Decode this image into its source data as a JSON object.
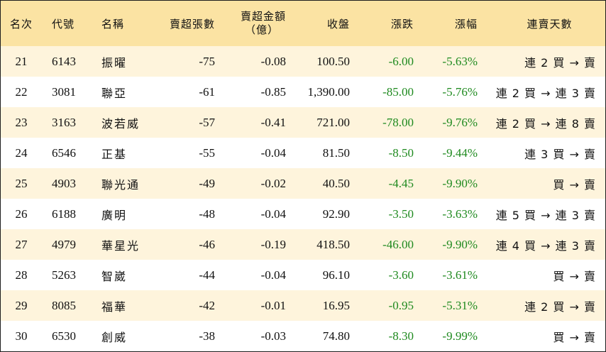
{
  "table": {
    "headers": {
      "rank": "名次",
      "code": "代號",
      "name": "名稱",
      "net_sell_lots": "賣超張數",
      "net_sell_amount_line1": "賣超金額",
      "net_sell_amount_line2": "（億）",
      "close": "收盤",
      "change": "漲跌",
      "change_pct": "漲幅",
      "consecutive_days": "連賣天數"
    },
    "rows": [
      {
        "rank": "21",
        "code": "6143",
        "name": "振曜",
        "lots": "-75",
        "amount": "-0.08",
        "close": "100.50",
        "change": "-6.00",
        "pct": "-5.63%",
        "days": "連 2 買 → 賣"
      },
      {
        "rank": "22",
        "code": "3081",
        "name": "聯亞",
        "lots": "-61",
        "amount": "-0.85",
        "close": "1,390.00",
        "change": "-85.00",
        "pct": "-5.76%",
        "days": "連 2 買 → 連 3 賣"
      },
      {
        "rank": "23",
        "code": "3163",
        "name": "波若威",
        "lots": "-57",
        "amount": "-0.41",
        "close": "721.00",
        "change": "-78.00",
        "pct": "-9.76%",
        "days": "連 2 買 → 連 8 賣"
      },
      {
        "rank": "24",
        "code": "6546",
        "name": "正基",
        "lots": "-55",
        "amount": "-0.04",
        "close": "81.50",
        "change": "-8.50",
        "pct": "-9.44%",
        "days": "連 3 買 → 賣"
      },
      {
        "rank": "25",
        "code": "4903",
        "name": "聯光通",
        "lots": "-49",
        "amount": "-0.02",
        "close": "40.50",
        "change": "-4.45",
        "pct": "-9.90%",
        "days": "買 → 賣"
      },
      {
        "rank": "26",
        "code": "6188",
        "name": "廣明",
        "lots": "-48",
        "amount": "-0.04",
        "close": "92.90",
        "change": "-3.50",
        "pct": "-3.63%",
        "days": "連 5 買 → 連 3 賣"
      },
      {
        "rank": "27",
        "code": "4979",
        "name": "華星光",
        "lots": "-46",
        "amount": "-0.19",
        "close": "418.50",
        "change": "-46.00",
        "pct": "-9.90%",
        "days": "連 4 買 → 連 3 賣"
      },
      {
        "rank": "28",
        "code": "5263",
        "name": "智崴",
        "lots": "-44",
        "amount": "-0.04",
        "close": "96.10",
        "change": "-3.60",
        "pct": "-3.61%",
        "days": "買 → 賣"
      },
      {
        "rank": "29",
        "code": "8085",
        "name": "福華",
        "lots": "-42",
        "amount": "-0.01",
        "close": "16.95",
        "change": "-0.95",
        "pct": "-5.31%",
        "days": "連 2 買 → 賣"
      },
      {
        "rank": "30",
        "code": "6530",
        "name": "創威",
        "lots": "-38",
        "amount": "-0.03",
        "close": "74.80",
        "change": "-8.30",
        "pct": "-9.99%",
        "days": "買 → 賣"
      }
    ]
  },
  "colors": {
    "header_bg": "#fbe3a3",
    "stripe_bg": "#fef4dc",
    "negative_text": "#1f8a1f",
    "border": "#1e1e1e"
  }
}
